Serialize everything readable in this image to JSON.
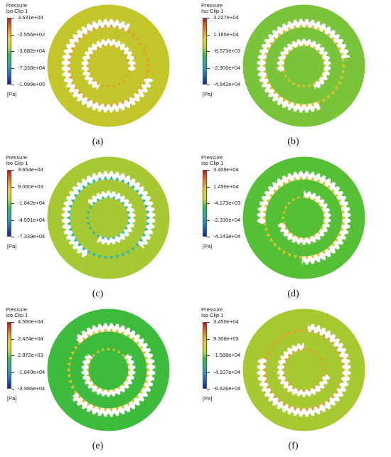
{
  "panels": [
    {
      "caption": "(a)",
      "legend_title1": "Pressure",
      "legend_title2": "Iso Clip 1",
      "ticks": [
        "3.631e+04",
        "-2.556e+02",
        "-3.682e+04",
        "-7.338e+04",
        "-1.099e+05"
      ],
      "unit": "[Pa]",
      "fill_color": "#c2c62a",
      "accent_color": "#e0a030"
    },
    {
      "caption": "(b)",
      "legend_title1": "Pressure",
      "legend_title2": "Iso Clip 1",
      "ticks": [
        "3.227e+04",
        "1.185e+04",
        "-8.573e+03",
        "-2.900e+04",
        "-4.942e+04"
      ],
      "unit": "[Pa]",
      "fill_color": "#79c43a",
      "accent_color": "#e0c030"
    },
    {
      "caption": "(c)",
      "legend_title1": "Pressure",
      "legend_title2": "Iso Clip 1",
      "ticks": [
        "3.654e+04",
        "9.060e+03",
        "-1.842e+04",
        "-4.591e+04",
        "-7.339e+04"
      ],
      "unit": "[Pa]",
      "fill_color": "#a6c933",
      "accent_color": "#2fb7b0"
    },
    {
      "caption": "(d)",
      "legend_title1": "Pressure",
      "legend_title2": "Iso Clip 1",
      "ticks": [
        "3.408e+04",
        "1.496e+04",
        "-4.173e+03",
        "-2.330e+04",
        "-4.243e+04"
      ],
      "unit": "[Pa]",
      "fill_color": "#55c036",
      "accent_color": "#e0c030"
    },
    {
      "caption": "(e)",
      "legend_title1": "Pressure",
      "legend_title2": "Iso Clip 1",
      "ticks": [
        "4.560e+04",
        "2.424e+04",
        "2.872e+03",
        "-1.849e+04",
        "-3.986e+04"
      ],
      "unit": "[Pa]",
      "fill_color": "#3dbb3d",
      "accent_color": "#e0c030"
    },
    {
      "caption": "(f)",
      "legend_title1": "Pressure",
      "legend_title2": "Iso Clip 1",
      "ticks": [
        "3.450e+04",
        "9.308e+03",
        "-1.588e+04",
        "-4.107e+04",
        "-6.626e+04"
      ],
      "unit": "[Pa]",
      "fill_color": "#a8c832",
      "accent_color": "#e0a030"
    }
  ]
}
